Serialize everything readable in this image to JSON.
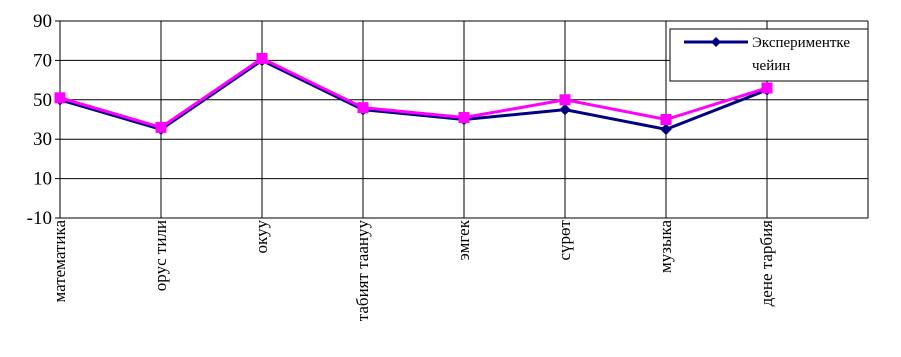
{
  "chart_data": {
    "type": "line",
    "title": "",
    "categories": [
      "математика",
      "орус тили",
      "окуу",
      "табият таануу",
      "эмгек",
      "сүрөт",
      "музыка",
      "дене тарбия"
    ],
    "series": [
      {
        "name": "Экспериментке чейин",
        "color": "#000080",
        "marker": "diamond",
        "values": [
          50,
          35,
          70,
          45,
          40,
          45,
          35,
          55
        ]
      },
      {
        "name": "",
        "color": "#ff00ff",
        "marker": "square",
        "values": [
          51,
          36,
          71,
          46,
          41,
          50,
          40,
          56
        ]
      }
    ],
    "ylim": [
      -10,
      90
    ],
    "yticks": [
      -10,
      10,
      30,
      50,
      70,
      90
    ],
    "grid": true,
    "legend_position": "top-right"
  }
}
